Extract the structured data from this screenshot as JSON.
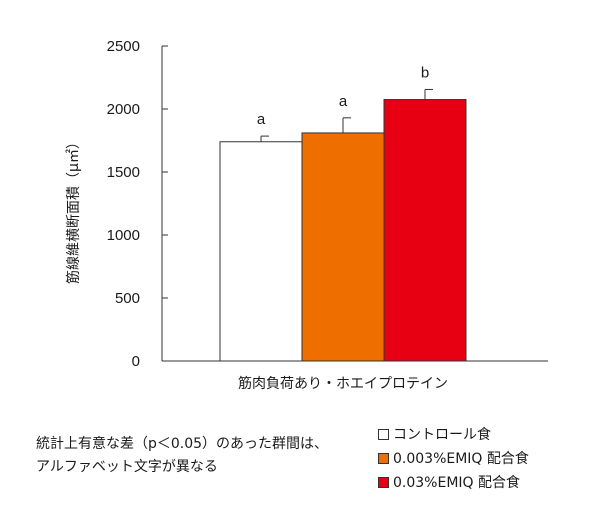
{
  "chart_data": {
    "type": "bar",
    "categories": [
      "コントロール食",
      "0.003%EMIQ 配合食",
      "0.03%EMIQ 配合食"
    ],
    "values": [
      1740,
      1810,
      2075
    ],
    "errors": [
      45,
      120,
      80
    ],
    "significance": [
      "a",
      "a",
      "b"
    ],
    "colors": [
      "#ffffff",
      "#ee6e00",
      "#e60012"
    ],
    "ylabel": "筋線維横断面積（μ㎡）",
    "xlabel": "筋肉負荷あり・ホエイプロテイン",
    "ylim": [
      0,
      2500
    ],
    "yticks": [
      0,
      500,
      1000,
      1500,
      2000,
      2500
    ],
    "grid": false,
    "legend_position": "bottom-right"
  },
  "note": {
    "line1": "統計上有意な差（p＜0.05）のあった群間は、",
    "line2": "アルファベット文字が異なる"
  },
  "legend": {
    "items": [
      {
        "label": "コントロール食",
        "color": "#ffffff"
      },
      {
        "label": "0.003%EMIQ 配合食",
        "color": "#ee6e00"
      },
      {
        "label": "0.03%EMIQ 配合食",
        "color": "#e60012"
      }
    ]
  }
}
